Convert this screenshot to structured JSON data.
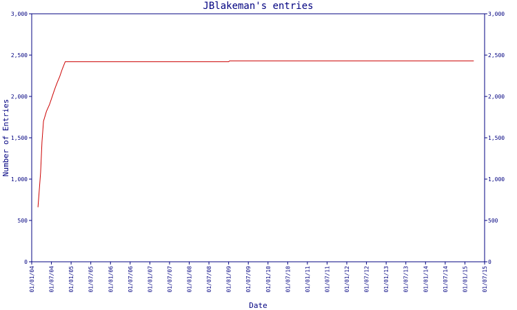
{
  "chart_data": {
    "type": "line",
    "title": "JBlakeman's entries",
    "xlabel": "Date",
    "ylabel": "Number of Entries",
    "ylim": [
      0,
      3000
    ],
    "y_ticks": [
      0,
      500,
      1000,
      1500,
      2000,
      2500,
      3000
    ],
    "y_tick_labels": [
      "0",
      "500",
      "1,000",
      "1,500",
      "2,000",
      "2,500",
      "3,000"
    ],
    "y_axis_right": true,
    "x_tick_labels": [
      "01/01/04",
      "01/07/04",
      "01/01/05",
      "01/07/05",
      "01/01/06",
      "01/07/06",
      "01/01/07",
      "01/07/07",
      "01/01/08",
      "01/07/08",
      "01/01/09",
      "01/07/09",
      "01/01/10",
      "01/07/10",
      "01/01/11",
      "01/07/11",
      "01/01/12",
      "01/07/12",
      "01/01/13",
      "01/07/13",
      "01/01/14",
      "01/07/14",
      "01/01/15",
      "01/07/15"
    ],
    "line_color": "#cc0000",
    "axis_color": "#000080",
    "series": [
      {
        "x": [
          0.32,
          0.45,
          0.52,
          0.6,
          0.75,
          0.9,
          1.0,
          1.1,
          1.2,
          1.3,
          1.42,
          1.55,
          1.7,
          2.0,
          3.0,
          5.0,
          8.0,
          10.0,
          10.05,
          12.0,
          15.0,
          22.45
        ],
        "y": [
          660,
          1080,
          1450,
          1700,
          1820,
          1900,
          1970,
          2040,
          2110,
          2170,
          2240,
          2330,
          2420,
          2420,
          2420,
          2420,
          2420,
          2420,
          2430,
          2430,
          2430,
          2430
        ]
      }
    ]
  }
}
